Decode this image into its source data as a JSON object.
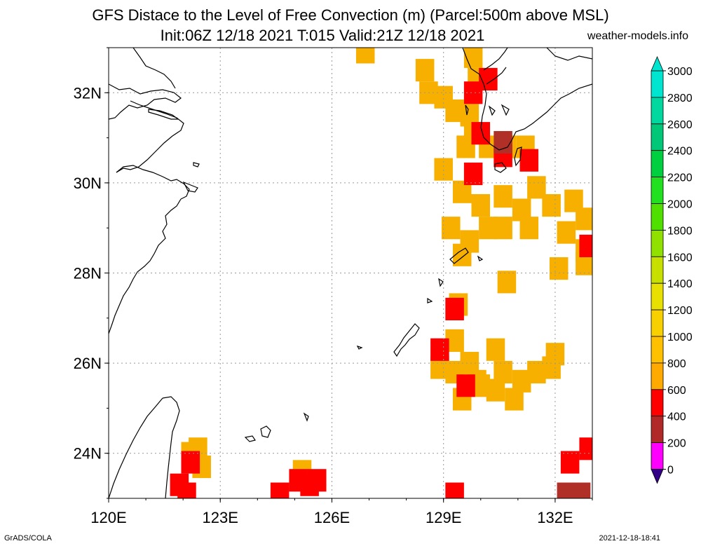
{
  "title": {
    "line1": "GFS Distace to the Level of Free Convection (m) (Parcel:500m above MSL)",
    "line2": "Init:06Z 12/18 2021 T:015 Valid:21Z 12/18 2021",
    "site": "weather-models.info"
  },
  "footer": {
    "left": "GrADS/COLA",
    "right": "2021-12-18-18:41"
  },
  "map": {
    "lon_range": [
      120.0,
      133.0
    ],
    "lat_range": [
      23.0,
      33.0
    ],
    "grid": true,
    "x_ticks": [
      "120E",
      "123E",
      "126E",
      "129E",
      "132E"
    ],
    "y_ticks": [
      "32N",
      "30N",
      "28N",
      "26N",
      "24N"
    ]
  },
  "colorbar": {
    "labels": [
      "3000",
      "2800",
      "2600",
      "2400",
      "2200",
      "2000",
      "1800",
      "1600",
      "1400",
      "1200",
      "1000",
      "800",
      "600",
      "400",
      "200",
      "0"
    ],
    "colors": [
      "#00e5d0",
      "#00d8a0",
      "#00c878",
      "#00d040",
      "#20e020",
      "#50e000",
      "#90e000",
      "#c8e000",
      "#e8e000",
      "#f8d000",
      "#ffc000",
      "#ffaa00",
      "#ff0000",
      "#b02828",
      "#ff00ff",
      "#330088"
    ]
  },
  "fields": {
    "orange": [
      [
        128.5,
        32.5
      ],
      [
        128.6,
        32.0
      ],
      [
        129.0,
        31.9
      ],
      [
        129.3,
        31.6
      ],
      [
        129.8,
        32.8
      ],
      [
        129.9,
        32.3
      ],
      [
        129.7,
        31.5
      ],
      [
        129.8,
        31.1
      ],
      [
        129.6,
        30.8
      ],
      [
        130.2,
        30.8
      ],
      [
        130.7,
        30.8
      ],
      [
        131.2,
        30.8
      ],
      [
        129.0,
        30.3
      ],
      [
        129.5,
        29.8
      ],
      [
        130.0,
        29.5
      ],
      [
        130.6,
        29.7
      ],
      [
        131.1,
        29.4
      ],
      [
        131.5,
        29.9
      ],
      [
        131.9,
        29.5
      ],
      [
        132.5,
        29.6
      ],
      [
        132.8,
        29.2
      ],
      [
        129.2,
        29.0
      ],
      [
        129.7,
        28.7
      ],
      [
        130.2,
        29.0
      ],
      [
        130.6,
        29.0
      ],
      [
        131.3,
        29.0
      ],
      [
        132.3,
        28.9
      ],
      [
        132.8,
        28.5
      ],
      [
        129.5,
        28.4
      ],
      [
        132.8,
        28.2
      ],
      [
        132.1,
        28.1
      ],
      [
        130.7,
        27.8
      ],
      [
        129.4,
        27.3
      ],
      [
        126.9,
        32.9
      ],
      [
        129.3,
        26.5
      ],
      [
        128.9,
        25.9
      ],
      [
        129.3,
        25.8
      ],
      [
        129.7,
        26.0
      ],
      [
        130.0,
        25.5
      ],
      [
        130.4,
        26.3
      ],
      [
        130.6,
        25.8
      ],
      [
        131.1,
        25.6
      ],
      [
        131.5,
        25.8
      ],
      [
        129.5,
        25.2
      ],
      [
        130.4,
        25.4
      ],
      [
        130.9,
        25.2
      ],
      [
        129.9,
        25.6
      ],
      [
        132.0,
        26.2
      ],
      [
        131.9,
        25.9
      ],
      [
        122.4,
        24.1
      ],
      [
        122.5,
        23.7
      ],
      [
        122.2,
        24.0
      ],
      [
        125.2,
        23.6
      ]
    ],
    "red": [
      [
        129.8,
        32.0
      ],
      [
        130.2,
        32.3
      ],
      [
        130.0,
        31.1
      ],
      [
        130.6,
        30.6
      ],
      [
        131.3,
        30.5
      ],
      [
        129.8,
        30.2
      ],
      [
        132.9,
        28.6
      ],
      [
        129.3,
        27.2
      ],
      [
        128.9,
        26.3
      ],
      [
        129.6,
        25.5
      ],
      [
        122.2,
        23.8
      ],
      [
        121.9,
        23.3
      ],
      [
        122.1,
        23.1
      ],
      [
        125.1,
        23.4
      ],
      [
        125.4,
        23.3
      ],
      [
        125.6,
        23.4
      ],
      [
        124.6,
        23.1
      ],
      [
        129.3,
        23.1
      ],
      [
        132.4,
        23.8
      ],
      [
        132.9,
        24.1
      ]
    ],
    "brown": [
      [
        130.6,
        30.9
      ],
      [
        132.3,
        23.1
      ],
      [
        132.7,
        23.1
      ]
    ]
  }
}
